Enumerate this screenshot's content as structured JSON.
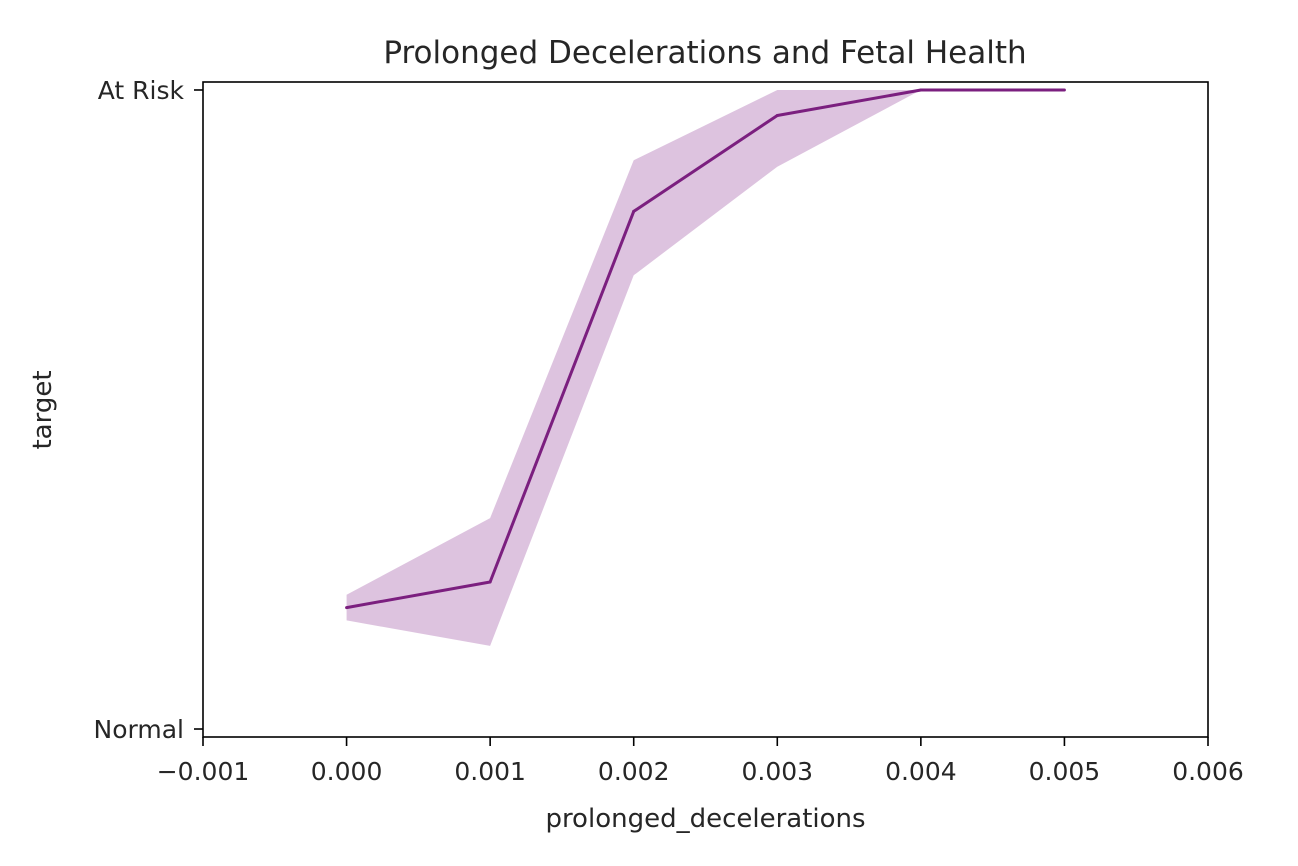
{
  "chart_data": {
    "type": "line",
    "title": "Prolonged Decelerations and Fetal Health",
    "xlabel": "prolonged_decelerations",
    "ylabel": "target",
    "xlim": [
      -0.001,
      0.006
    ],
    "ylim": [
      -0.0125,
      1.0125
    ],
    "x_ticks": [
      -0.001,
      0.0,
      0.001,
      0.002,
      0.003,
      0.004,
      0.005,
      0.006
    ],
    "x_tick_labels": [
      "−0.001",
      "0.000",
      "0.001",
      "0.002",
      "0.003",
      "0.004",
      "0.005",
      "0.006"
    ],
    "y_ticks": [
      0,
      1
    ],
    "y_tick_labels": [
      "Normal",
      "At Risk"
    ],
    "grid": false,
    "series": [
      {
        "color": "#7b1f7f",
        "band_color": "#d9bddc",
        "x": [
          0.0,
          0.001,
          0.002,
          0.003,
          0.004,
          0.005
        ],
        "values": [
          0.19,
          0.23,
          0.81,
          0.96,
          1.0,
          1.0
        ],
        "ci_low": [
          0.17,
          0.13,
          0.71,
          0.88,
          1.0,
          1.0
        ],
        "ci_high": [
          0.21,
          0.33,
          0.89,
          1.0,
          1.0,
          1.0
        ]
      }
    ]
  }
}
